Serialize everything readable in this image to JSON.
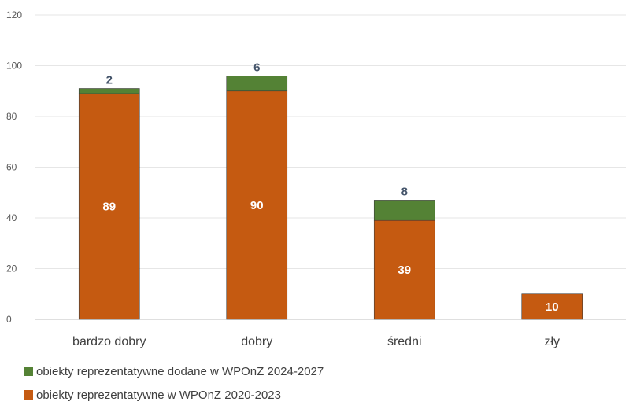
{
  "chart_data": {
    "type": "bar",
    "stacked": true,
    "categories": [
      "bardzo dobry",
      "dobry",
      "średni",
      "zły"
    ],
    "series": [
      {
        "name": "obiekty reprezentatywne w WPOnZ 2020-2023",
        "values": [
          89,
          90,
          39,
          10
        ],
        "labels": [
          "89",
          "90",
          "39",
          "10"
        ],
        "color": "#c55a11"
      },
      {
        "name": "obiekty reprezentatywne dodane w WPOnZ 2024-2027",
        "values": [
          2,
          6,
          8,
          0
        ],
        "labels": [
          "2",
          "6",
          "8",
          ""
        ],
        "color": "#548235"
      }
    ],
    "ylim": [
      0,
      120
    ],
    "yticks": [
      "0",
      "20",
      "40",
      "60",
      "80",
      "100",
      "120"
    ],
    "grid": true,
    "legend_position": "bottom-left",
    "title": "",
    "xlabel": "",
    "ylabel": ""
  }
}
